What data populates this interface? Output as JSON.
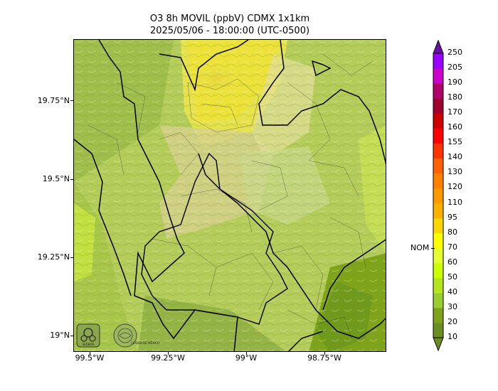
{
  "title": {
    "line1": "O3 8h MOVIL (ppbV) CDMX 1x1km",
    "line2": "2025/05/06 - 18:00:00 (UTC-0500)"
  },
  "axes": {
    "lat_labels": [
      "19.75°N",
      "19.5°N",
      "19.25°N",
      "19°N"
    ],
    "lon_labels": [
      "99.5°W",
      "99.25°W",
      "99°W",
      "98.75°W"
    ]
  },
  "colorbar": {
    "levels": [
      10,
      20,
      30,
      40,
      50,
      60,
      70,
      80,
      95,
      110,
      120,
      130,
      140,
      155,
      160,
      170,
      180,
      190,
      205,
      250
    ],
    "colors": [
      "#6b8e23",
      "#7fa41a",
      "#9acd32",
      "#b5e61d",
      "#ccff00",
      "#e6ff33",
      "#ffff00",
      "#ffd700",
      "#ffb000",
      "#ff9900",
      "#ff7f00",
      "#ff6000",
      "#ff3300",
      "#ff0000",
      "#cc0000",
      "#a00030",
      "#b0006a",
      "#cc00cc",
      "#9900ff",
      "#6a0dad"
    ],
    "threshold_label": "NOM",
    "threshold_value": 70
  },
  "logos": {
    "sedema_text": "SEDEMA",
    "cdmx_text": "CIUDAD DE MÉXICO"
  },
  "map": {
    "dominant_colors": [
      "#b8cf5e",
      "#9fbe4c",
      "#d9d98a",
      "#e8e04a",
      "#7fa41a"
    ]
  }
}
